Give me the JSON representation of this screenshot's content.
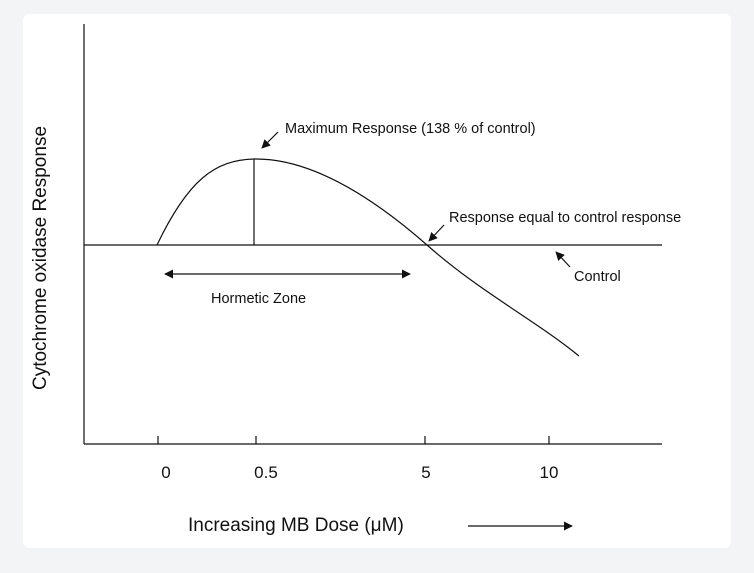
{
  "chart_data": {
    "type": "line",
    "title": "",
    "xlabel": "Increasing MB Dose (μM)",
    "ylabel": "Cytochrome oxidase Response",
    "x_scale": "log",
    "x_ticks": [
      "0",
      "0.5",
      "5",
      "10"
    ],
    "y_ticks": [],
    "series": [
      {
        "x": [
          "0",
          "0.5",
          "5",
          "10"
        ],
        "y": [
          100,
          138,
          100,
          75
        ]
      }
    ],
    "reference_line": {
      "y": 100
    },
    "annotations": {
      "max": "Maximum Response (138 % of control)",
      "equal": "Response equal to control response",
      "control": "Control",
      "zone": "Hormetic Zone"
    }
  }
}
